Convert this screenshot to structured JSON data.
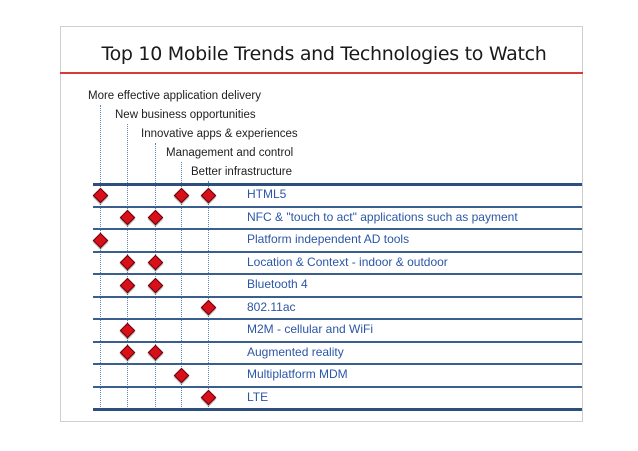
{
  "title": "Top 10 Mobile Trends and Technologies to Watch",
  "colors": {
    "accent_rule": "#d93a36",
    "row_text": "#2b56a8",
    "diamond": "#d8101a",
    "lines": "#2c4f7c"
  },
  "criteria": [
    "More effective application delivery",
    "New business opportunities",
    "Innovative apps & experiences",
    "Management and control",
    "Better infrastructure"
  ],
  "rows": [
    {
      "label": "HTML5",
      "marks": [
        0,
        3,
        4
      ]
    },
    {
      "label": "NFC & \"touch to act\" applications such as payment",
      "marks": [
        1,
        2
      ]
    },
    {
      "label": "Platform independent AD tools",
      "marks": [
        0
      ]
    },
    {
      "label": "Location & Context - indoor & outdoor",
      "marks": [
        1,
        2
      ]
    },
    {
      "label": "Bluetooth 4",
      "marks": [
        1,
        2
      ]
    },
    {
      "label": "802.11ac",
      "marks": [
        4
      ]
    },
    {
      "label": "M2M - cellular and WiFi",
      "marks": [
        1
      ]
    },
    {
      "label": "Augmented reality",
      "marks": [
        1,
        2
      ]
    },
    {
      "label": "Multiplatform MDM",
      "marks": [
        3
      ]
    },
    {
      "label": "LTE",
      "marks": [
        4
      ]
    }
  ]
}
